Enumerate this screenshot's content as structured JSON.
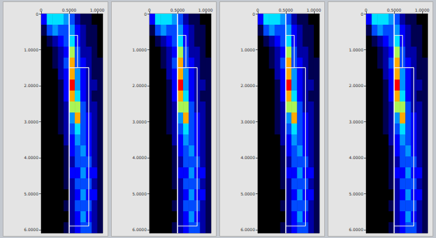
{
  "chart_data": [
    {
      "type": "heatmap",
      "xlim": [
        0,
        1.1
      ],
      "xticks": [
        0,
        {
          "value": 0.5,
          "label": "0.5000"
        },
        {
          "value": 1,
          "label": "1.0000"
        }
      ],
      "ylim": [
        0,
        6.1
      ],
      "yticks": [
        0,
        {
          "value": 1,
          "label": "1.0000"
        },
        {
          "value": 2,
          "label": "2.0000"
        },
        {
          "value": 3,
          "label": "3.0000"
        },
        {
          "value": 4,
          "label": "4.0000"
        },
        {
          "value": 5,
          "label": "5.0000"
        },
        {
          "value": 6,
          "label": "6.0000"
        }
      ],
      "cell_x": [
        0,
        0.1,
        0.2,
        0.3,
        0.4,
        0.5,
        0.6,
        0.7,
        0.8,
        0.9,
        1.0
      ],
      "cell_y": [
        0,
        0.305,
        0.61,
        0.915,
        1.22,
        1.525,
        1.83,
        2.135,
        2.44,
        2.745,
        3.05,
        3.355,
        3.66,
        3.965,
        4.27,
        4.575,
        4.88,
        5.185,
        5.49,
        5.795
      ],
      "cells": [
        [
          3,
          6,
          6,
          6,
          5,
          4,
          2,
          1,
          1,
          0,
          0
        ],
        [
          1,
          4,
          5,
          4,
          4,
          5,
          3,
          2,
          1,
          1,
          0
        ],
        [
          0,
          1,
          2,
          3,
          4,
          6,
          3,
          2,
          1,
          1,
          0
        ],
        [
          0,
          0,
          1,
          2,
          3,
          7,
          4,
          2,
          2,
          1,
          0
        ],
        [
          0,
          0,
          1,
          2,
          4,
          8,
          4,
          3,
          2,
          1,
          1
        ],
        [
          0,
          0,
          0,
          2,
          3,
          8,
          5,
          3,
          2,
          1,
          1
        ],
        [
          0,
          0,
          0,
          1,
          3,
          9,
          5,
          3,
          2,
          2,
          1
        ],
        [
          0,
          0,
          0,
          1,
          3,
          8,
          6,
          3,
          2,
          1,
          1
        ],
        [
          0,
          0,
          0,
          1,
          2,
          7,
          7,
          4,
          2,
          2,
          1
        ],
        [
          0,
          0,
          0,
          1,
          2,
          5,
          8,
          4,
          3,
          2,
          1
        ],
        [
          0,
          0,
          0,
          1,
          2,
          4,
          6,
          4,
          3,
          2,
          1
        ],
        [
          0,
          0,
          0,
          0,
          2,
          3,
          5,
          4,
          3,
          2,
          1
        ],
        [
          0,
          0,
          0,
          0,
          1,
          3,
          4,
          5,
          3,
          2,
          1
        ],
        [
          0,
          0,
          0,
          0,
          1,
          2,
          4,
          4,
          4,
          2,
          1
        ],
        [
          0,
          0,
          0,
          0,
          1,
          3,
          3,
          5,
          3,
          3,
          1
        ],
        [
          0,
          0,
          0,
          0,
          1,
          2,
          4,
          4,
          4,
          2,
          1
        ],
        [
          0,
          0,
          0,
          0,
          0,
          2,
          3,
          5,
          3,
          3,
          1
        ],
        [
          0,
          0,
          0,
          0,
          1,
          2,
          4,
          4,
          4,
          2,
          1
        ],
        [
          0,
          0,
          0,
          0,
          0,
          2,
          3,
          5,
          3,
          2,
          1
        ],
        [
          0,
          0,
          0,
          0,
          1,
          2,
          3,
          4,
          4,
          2,
          1
        ]
      ],
      "cell_range": [
        0,
        9
      ],
      "vline": 0.5,
      "brackets": [
        {
          "x": [
            0.5,
            0.65
          ],
          "y": [
            0.6,
            1.5
          ]
        },
        {
          "x": [
            0.5,
            0.85
          ],
          "y": [
            1.5,
            5.9
          ]
        }
      ]
    },
    {
      "type": "heatmap",
      "xlim": [
        0,
        1.1
      ],
      "xticks": [
        0,
        {
          "value": 0.5,
          "label": "0.5000"
        },
        {
          "value": 1,
          "label": "1.0000"
        }
      ],
      "ylim": [
        0,
        6.1
      ],
      "yticks": [
        0,
        {
          "value": 1,
          "label": "1.0000"
        },
        {
          "value": 2,
          "label": "2.0000"
        },
        {
          "value": 3,
          "label": "3.0000"
        },
        {
          "value": 4,
          "label": "4.0000"
        },
        {
          "value": 5,
          "label": "5.0000"
        },
        {
          "value": 6,
          "label": "6.0000"
        }
      ],
      "cell_x": [
        0,
        0.1,
        0.2,
        0.3,
        0.4,
        0.5,
        0.6,
        0.7,
        0.8,
        0.9,
        1.0
      ],
      "cell_y": [
        0,
        0.305,
        0.61,
        0.915,
        1.22,
        1.525,
        1.83,
        2.135,
        2.44,
        2.745,
        3.05,
        3.355,
        3.66,
        3.965,
        4.27,
        4.575,
        4.88,
        5.185,
        5.49,
        5.795
      ],
      "cells": [
        [
          3,
          6,
          6,
          6,
          5,
          4,
          2,
          1,
          1,
          0,
          0
        ],
        [
          1,
          4,
          5,
          4,
          4,
          5,
          3,
          2,
          1,
          1,
          0
        ],
        [
          0,
          1,
          2,
          3,
          4,
          6,
          3,
          2,
          1,
          1,
          0
        ],
        [
          0,
          0,
          1,
          2,
          3,
          7,
          4,
          2,
          2,
          1,
          0
        ],
        [
          0,
          0,
          1,
          2,
          4,
          8,
          4,
          3,
          2,
          1,
          1
        ],
        [
          0,
          0,
          0,
          2,
          3,
          8,
          5,
          3,
          2,
          1,
          1
        ],
        [
          0,
          0,
          0,
          1,
          3,
          9,
          5,
          3,
          2,
          2,
          1
        ],
        [
          0,
          0,
          0,
          1,
          3,
          8,
          6,
          3,
          2,
          1,
          1
        ],
        [
          0,
          0,
          0,
          1,
          2,
          7,
          7,
          4,
          2,
          2,
          1
        ],
        [
          0,
          0,
          0,
          1,
          2,
          5,
          8,
          4,
          3,
          2,
          1
        ],
        [
          0,
          0,
          0,
          1,
          2,
          4,
          6,
          4,
          3,
          2,
          1
        ],
        [
          0,
          0,
          0,
          0,
          2,
          3,
          5,
          4,
          3,
          2,
          1
        ],
        [
          0,
          0,
          0,
          0,
          1,
          3,
          4,
          5,
          3,
          2,
          1
        ],
        [
          0,
          0,
          0,
          0,
          1,
          2,
          4,
          4,
          4,
          2,
          1
        ],
        [
          0,
          0,
          0,
          0,
          1,
          3,
          3,
          5,
          3,
          3,
          1
        ],
        [
          0,
          0,
          0,
          0,
          1,
          2,
          4,
          4,
          4,
          2,
          1
        ],
        [
          0,
          0,
          0,
          0,
          0,
          2,
          3,
          5,
          3,
          3,
          1
        ],
        [
          0,
          0,
          0,
          0,
          1,
          2,
          4,
          4,
          4,
          2,
          1
        ],
        [
          0,
          0,
          0,
          0,
          0,
          2,
          3,
          5,
          3,
          2,
          1
        ],
        [
          0,
          0,
          0,
          0,
          1,
          2,
          3,
          4,
          4,
          2,
          1
        ]
      ],
      "cell_range": [
        0,
        9
      ],
      "vline": 0.5,
      "brackets": [
        {
          "x": [
            0.5,
            0.65
          ],
          "y": [
            0.6,
            1.5
          ]
        },
        {
          "x": [
            0.5,
            0.85
          ],
          "y": [
            1.5,
            5.9
          ]
        }
      ]
    },
    {
      "type": "heatmap",
      "xlim": [
        0,
        1.1
      ],
      "xticks": [
        0,
        {
          "value": 0.5,
          "label": "0.5000"
        },
        {
          "value": 1,
          "label": "1.0000"
        }
      ],
      "ylim": [
        0,
        6.1
      ],
      "yticks": [
        0,
        {
          "value": 1,
          "label": "1.0000"
        },
        {
          "value": 2,
          "label": "2.0000"
        },
        {
          "value": 3,
          "label": "3.0000"
        },
        {
          "value": 4,
          "label": "4.0000"
        },
        {
          "value": 5,
          "label": "5.0000"
        },
        {
          "value": 6,
          "label": "6.0000"
        }
      ],
      "cell_x": [
        0,
        0.1,
        0.2,
        0.3,
        0.4,
        0.5,
        0.6,
        0.7,
        0.8,
        0.9,
        1.0
      ],
      "cell_y": [
        0,
        0.305,
        0.61,
        0.915,
        1.22,
        1.525,
        1.83,
        2.135,
        2.44,
        2.745,
        3.05,
        3.355,
        3.66,
        3.965,
        4.27,
        4.575,
        4.88,
        5.185,
        5.49,
        5.795
      ],
      "cells": [
        [
          3,
          6,
          6,
          6,
          5,
          4,
          2,
          1,
          1,
          0,
          0
        ],
        [
          1,
          4,
          5,
          4,
          4,
          5,
          3,
          2,
          1,
          1,
          0
        ],
        [
          0,
          1,
          2,
          3,
          4,
          6,
          3,
          2,
          1,
          1,
          0
        ],
        [
          0,
          0,
          1,
          2,
          3,
          7,
          4,
          2,
          2,
          1,
          0
        ],
        [
          0,
          0,
          1,
          2,
          4,
          8,
          4,
          3,
          2,
          1,
          1
        ],
        [
          0,
          0,
          0,
          2,
          3,
          8,
          5,
          3,
          2,
          1,
          1
        ],
        [
          0,
          0,
          0,
          1,
          3,
          9,
          5,
          3,
          2,
          2,
          1
        ],
        [
          0,
          0,
          0,
          1,
          3,
          8,
          6,
          3,
          2,
          1,
          1
        ],
        [
          0,
          0,
          0,
          1,
          2,
          7,
          7,
          4,
          2,
          2,
          1
        ],
        [
          0,
          0,
          0,
          1,
          2,
          5,
          8,
          4,
          3,
          2,
          1
        ],
        [
          0,
          0,
          0,
          1,
          2,
          4,
          6,
          4,
          3,
          2,
          1
        ],
        [
          0,
          0,
          0,
          0,
          2,
          3,
          5,
          4,
          3,
          2,
          1
        ],
        [
          0,
          0,
          0,
          0,
          1,
          3,
          4,
          5,
          3,
          2,
          1
        ],
        [
          0,
          0,
          0,
          0,
          1,
          2,
          4,
          4,
          4,
          2,
          1
        ],
        [
          0,
          0,
          0,
          0,
          1,
          3,
          3,
          5,
          3,
          3,
          1
        ],
        [
          0,
          0,
          0,
          0,
          1,
          2,
          4,
          4,
          4,
          2,
          1
        ],
        [
          0,
          0,
          0,
          0,
          0,
          2,
          3,
          5,
          3,
          3,
          1
        ],
        [
          0,
          0,
          0,
          0,
          1,
          2,
          4,
          4,
          4,
          2,
          1
        ],
        [
          0,
          0,
          0,
          0,
          0,
          2,
          3,
          5,
          3,
          2,
          1
        ],
        [
          0,
          0,
          0,
          0,
          1,
          2,
          3,
          4,
          4,
          2,
          1
        ]
      ],
      "cell_range": [
        0,
        9
      ],
      "vline": 0.5,
      "brackets": [
        {
          "x": [
            0.5,
            0.65
          ],
          "y": [
            0.6,
            1.5
          ]
        },
        {
          "x": [
            0.5,
            0.85
          ],
          "y": [
            1.5,
            5.9
          ]
        }
      ]
    },
    {
      "type": "heatmap",
      "xlim": [
        0,
        1.1
      ],
      "xticks": [
        0,
        {
          "value": 0.5,
          "label": "0.5000"
        },
        {
          "value": 1,
          "label": "1.0000"
        }
      ],
      "ylim": [
        0,
        6.1
      ],
      "yticks": [
        0,
        {
          "value": 1,
          "label": "1.0000"
        },
        {
          "value": 2,
          "label": "2.0000"
        },
        {
          "value": 3,
          "label": "3.0000"
        },
        {
          "value": 4,
          "label": "4.0000"
        },
        {
          "value": 5,
          "label": "5.0000"
        },
        {
          "value": 6,
          "label": "6.0000"
        }
      ],
      "cell_x": [
        0,
        0.1,
        0.2,
        0.3,
        0.4,
        0.5,
        0.6,
        0.7,
        0.8,
        0.9,
        1.0
      ],
      "cell_y": [
        0,
        0.305,
        0.61,
        0.915,
        1.22,
        1.525,
        1.83,
        2.135,
        2.44,
        2.745,
        3.05,
        3.355,
        3.66,
        3.965,
        4.27,
        4.575,
        4.88,
        5.185,
        5.49,
        5.795
      ],
      "cells": [
        [
          3,
          6,
          6,
          6,
          5,
          4,
          2,
          1,
          1,
          0,
          0
        ],
        [
          1,
          4,
          5,
          4,
          4,
          5,
          3,
          2,
          1,
          1,
          0
        ],
        [
          0,
          1,
          2,
          3,
          4,
          6,
          3,
          2,
          1,
          1,
          0
        ],
        [
          0,
          0,
          1,
          2,
          3,
          7,
          4,
          2,
          2,
          1,
          0
        ],
        [
          0,
          0,
          1,
          2,
          4,
          8,
          4,
          3,
          2,
          1,
          1
        ],
        [
          0,
          0,
          0,
          2,
          3,
          8,
          5,
          3,
          2,
          1,
          1
        ],
        [
          0,
          0,
          0,
          1,
          3,
          9,
          5,
          3,
          2,
          2,
          1
        ],
        [
          0,
          0,
          0,
          1,
          3,
          8,
          6,
          3,
          2,
          1,
          1
        ],
        [
          0,
          0,
          0,
          1,
          2,
          7,
          7,
          4,
          2,
          2,
          1
        ],
        [
          0,
          0,
          0,
          1,
          2,
          5,
          8,
          4,
          3,
          2,
          1
        ],
        [
          0,
          0,
          0,
          1,
          2,
          4,
          6,
          4,
          3,
          2,
          1
        ],
        [
          0,
          0,
          0,
          0,
          2,
          3,
          5,
          4,
          3,
          2,
          1
        ],
        [
          0,
          0,
          0,
          0,
          1,
          3,
          4,
          5,
          3,
          2,
          1
        ],
        [
          0,
          0,
          0,
          0,
          1,
          2,
          4,
          4,
          4,
          2,
          1
        ],
        [
          0,
          0,
          0,
          0,
          1,
          3,
          3,
          5,
          3,
          3,
          1
        ],
        [
          0,
          0,
          0,
          0,
          1,
          2,
          4,
          4,
          4,
          2,
          1
        ],
        [
          0,
          0,
          0,
          0,
          0,
          2,
          3,
          5,
          3,
          3,
          1
        ],
        [
          0,
          0,
          0,
          0,
          1,
          2,
          4,
          4,
          4,
          2,
          1
        ],
        [
          0,
          0,
          0,
          0,
          0,
          2,
          3,
          5,
          3,
          2,
          1
        ],
        [
          0,
          0,
          0,
          0,
          1,
          2,
          3,
          4,
          4,
          2,
          1
        ]
      ],
      "cell_range": [
        0,
        9
      ],
      "vline": 0.5,
      "brackets": [
        {
          "x": [
            0.5,
            0.65
          ],
          "y": [
            0.6,
            1.5
          ]
        },
        {
          "x": [
            0.5,
            0.85
          ],
          "y": [
            1.5,
            5.9
          ]
        }
      ]
    }
  ]
}
